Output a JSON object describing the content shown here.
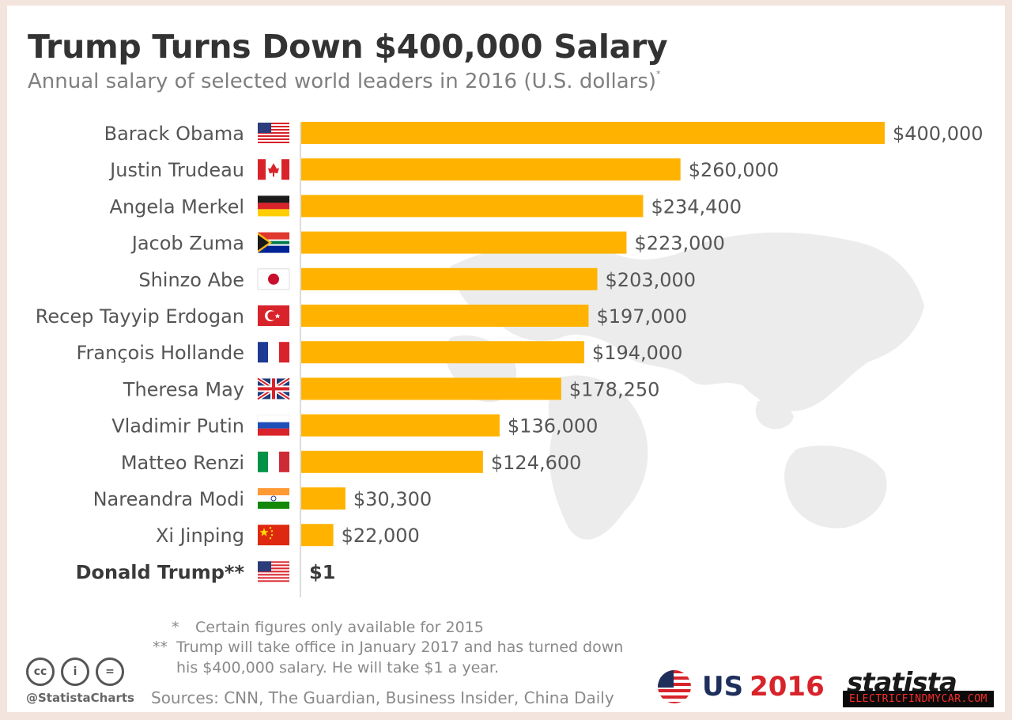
{
  "header": {
    "title": "Trump Turns Down $400,000 Salary",
    "subtitle": "Annual salary of selected world leaders in 2016 (U.S. dollars)",
    "subtitle_mark": "*"
  },
  "chart_data": {
    "type": "bar",
    "orientation": "horizontal",
    "title": "Trump Turns Down $400,000 Salary",
    "subtitle": "Annual salary of selected world leaders in 2016 (U.S. dollars)*",
    "xlabel": "",
    "ylabel": "",
    "xlim": [
      0,
      400000
    ],
    "bar_color": "#ffb300",
    "categories": [
      "Barack Obama",
      "Justin Trudeau",
      "Angela Merkel",
      "Jacob Zuma",
      "Shinzo Abe",
      "Recep Tayyip Erdogan",
      "François Hollande",
      "Theresa May",
      "Vladimir Putin",
      "Matteo Renzi",
      "Nareandra Modi",
      "Xi Jinping",
      "Donald Trump**"
    ],
    "values": [
      400000,
      260000,
      234400,
      223000,
      203000,
      197000,
      194000,
      178250,
      136000,
      124600,
      30300,
      22000,
      1
    ],
    "value_labels": [
      "$400,000",
      "$260,000",
      "$234,400",
      "$223,000",
      "$203,000",
      "$197,000",
      "$194,000",
      "$178,250",
      "$136,000",
      "$124,600",
      "$30,300",
      "$22,000",
      "$1"
    ],
    "flags": [
      "us",
      "ca",
      "de",
      "za",
      "jp",
      "tr",
      "fr",
      "gb",
      "ru",
      "it",
      "in",
      "cn",
      "us"
    ],
    "highlight": "Donald Trump**"
  },
  "notes": {
    "note1_mark": "*",
    "note1": "Certain figures only available for 2015",
    "note2_mark": "**",
    "note2_line1": "Trump will take office in January 2017 and has turned down",
    "note2_line2": "his $400,000 salary. He will take $1 a year."
  },
  "footer": {
    "handle": "@StatistaCharts",
    "sources": "Sources: CNN, The Guardian, Business Insider, China Daily",
    "cc_icons": [
      "cc-icon",
      "attribution-icon",
      "no-derivatives-icon"
    ],
    "cc_glyphs": [
      "cc",
      "i",
      "="
    ],
    "us_label": "US",
    "year_label": "2016",
    "brand": "statista",
    "watermark": "ELECTRICFINDMYCAR.COM"
  },
  "colors": {
    "bar": "#ffb300",
    "title": "#333333",
    "accent_red": "#d8232a",
    "accent_navy": "#1e2f5c"
  }
}
